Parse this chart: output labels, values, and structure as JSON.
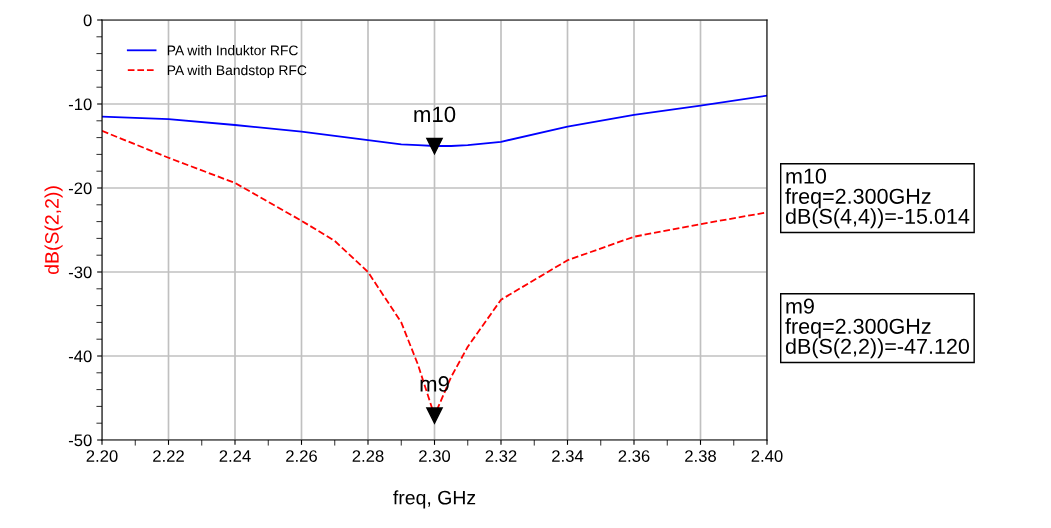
{
  "chart_data": {
    "type": "line",
    "xlabel": "freq, GHz",
    "ylabel": "dB(S(2,2))",
    "xlim": [
      2.2,
      2.4
    ],
    "ylim": [
      -50,
      0
    ],
    "xticks": [
      {
        "value": 2.2,
        "label": "2.20"
      },
      {
        "value": 2.22,
        "label": "2.22"
      },
      {
        "value": 2.24,
        "label": "2.24"
      },
      {
        "value": 2.26,
        "label": "2.26"
      },
      {
        "value": 2.28,
        "label": "2.28"
      },
      {
        "value": 2.3,
        "label": "2.30"
      },
      {
        "value": 2.32,
        "label": "2.32"
      },
      {
        "value": 2.34,
        "label": "2.34"
      },
      {
        "value": 2.36,
        "label": "2.36"
      },
      {
        "value": 2.38,
        "label": "2.38"
      },
      {
        "value": 2.4,
        "label": "2.40"
      }
    ],
    "yticks": [
      -50,
      -40,
      -30,
      -20,
      -10,
      0
    ],
    "grid": true,
    "legend": "top left",
    "x": [
      2.2,
      2.22,
      2.24,
      2.26,
      2.27,
      2.28,
      2.29,
      2.295,
      2.3,
      2.305,
      2.31,
      2.32,
      2.34,
      2.36,
      2.38,
      2.4
    ],
    "series": [
      {
        "name": "PA with Induktor RFC",
        "color": "#0000ff",
        "line_style": "solid",
        "values": [
          -11.5,
          -11.8,
          -12.5,
          -13.3,
          -13.8,
          -14.3,
          -14.8,
          -14.9,
          -15.0,
          -15.0,
          -14.9,
          -14.5,
          -12.7,
          -11.3,
          -10.2,
          -9.0
        ]
      },
      {
        "name": "PA with Bandstop RFC",
        "color": "#ff0000",
        "line_style": "dashed",
        "values": [
          -13.2,
          -16.4,
          -19.4,
          -23.9,
          -26.3,
          -30.0,
          -36.0,
          -41.0,
          -47.1,
          -42.5,
          -38.9,
          -33.3,
          -28.6,
          -25.8,
          -24.3,
          -22.9
        ]
      }
    ],
    "annotations": [
      {
        "text": "m10",
        "x": 2.3,
        "y": -15.0
      },
      {
        "text": "m9",
        "x": 2.3,
        "y": -47.1
      },
      "m10\nfreq=2.300GHz\ndB(S(4,4))=-15.014",
      "m9\nfreq=2.300GHz\ndB(S(2,2))=-47.120"
    ]
  }
}
